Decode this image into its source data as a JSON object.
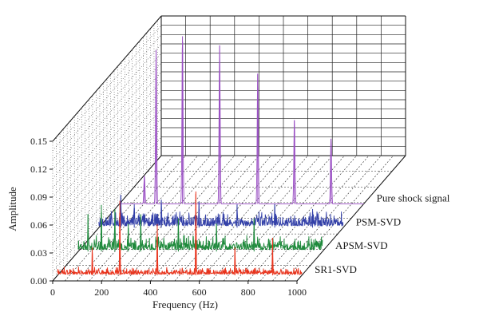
{
  "chart_data": {
    "type": "line",
    "view": "3d-waterfall",
    "xlabel": "Frequency (Hz)",
    "ylabel": "Amplitude",
    "x_ticks": [
      0,
      200,
      400,
      600,
      800,
      1000
    ],
    "y_ticks": [
      "0.00",
      "0.03",
      "0.06",
      "0.09",
      "0.12",
      "0.15"
    ],
    "xlim": [
      0,
      1000
    ],
    "ylim": [
      0,
      0.15
    ],
    "grid": true,
    "series": [
      {
        "name": "SR1-SVD",
        "color": "#e8331c",
        "noise_level": 0.006,
        "peaks": [
          {
            "x": 142,
            "y": 0.03
          },
          {
            "x": 255,
            "y": 0.08
          },
          {
            "x": 408,
            "y": 0.055
          },
          {
            "x": 566,
            "y": 0.09
          },
          {
            "x": 726,
            "y": 0.03
          },
          {
            "x": 880,
            "y": 0.04
          }
        ]
      },
      {
        "name": "APSM-SVD",
        "color": "#1f8a3c",
        "noise_level": 0.012,
        "peaks": [
          {
            "x": 40,
            "y": 0.04
          },
          {
            "x": 95,
            "y": 0.05
          },
          {
            "x": 150,
            "y": 0.045
          },
          {
            "x": 205,
            "y": 0.03
          },
          {
            "x": 256,
            "y": 0.04
          },
          {
            "x": 410,
            "y": 0.035
          },
          {
            "x": 566,
            "y": 0.03
          },
          {
            "x": 720,
            "y": 0.035
          }
        ]
      },
      {
        "name": "PSM-SVD",
        "color": "#3340a8",
        "noise_level": 0.012,
        "peaks": [
          {
            "x": 90,
            "y": 0.035
          },
          {
            "x": 145,
            "y": 0.025
          },
          {
            "x": 256,
            "y": 0.03
          },
          {
            "x": 410,
            "y": 0.028
          },
          {
            "x": 566,
            "y": 0.025
          },
          {
            "x": 720,
            "y": 0.025
          },
          {
            "x": 875,
            "y": 0.02
          }
        ]
      },
      {
        "name": "Pure shock signal",
        "color": "#9a4fc4",
        "noise_level": 0.0,
        "peaks": [
          {
            "x": 102,
            "y": 0.03
          },
          {
            "x": 150,
            "y": 0.165
          },
          {
            "x": 258,
            "y": 0.18
          },
          {
            "x": 410,
            "y": 0.17
          },
          {
            "x": 566,
            "y": 0.14
          },
          {
            "x": 716,
            "y": 0.09
          },
          {
            "x": 866,
            "y": 0.07
          }
        ]
      }
    ]
  }
}
